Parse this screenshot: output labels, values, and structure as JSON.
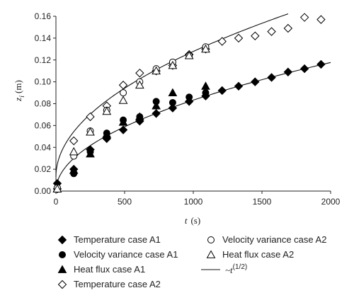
{
  "chart_data": {
    "type": "scatter",
    "xlabel": "t",
    "xunit": "(s)",
    "ylabel": "z",
    "ylabel_sub": "i",
    "yunit": "(m)",
    "xlim": [
      0,
      2000
    ],
    "ylim": [
      0,
      0.16
    ],
    "xticks": [
      0,
      500,
      1000,
      1500,
      2000
    ],
    "xtick_labels": [
      "0",
      "500",
      "1000",
      "1500",
      "2000"
    ],
    "yticks": [
      0,
      0.02,
      0.04,
      0.06,
      0.08,
      0.1,
      0.12,
      0.14,
      0.16
    ],
    "ytick_labels": [
      "0.00",
      "0.02",
      "0.04",
      "0.06",
      "0.08",
      "0.10",
      "0.12",
      "0.14",
      "0.16"
    ],
    "grid": false,
    "legend_position": "bottom",
    "series": [
      {
        "name": "Temperature case A1",
        "marker": "diamond-filled",
        "x": [
          10,
          130,
          250,
          370,
          490,
          610,
          730,
          850,
          970,
          1090,
          1210,
          1330,
          1450,
          1570,
          1690,
          1810,
          1930
        ],
        "y": [
          0.007,
          0.02,
          0.038,
          0.048,
          0.056,
          0.064,
          0.071,
          0.076,
          0.082,
          0.087,
          0.092,
          0.096,
          0.1,
          0.104,
          0.109,
          0.112,
          0.116
        ]
      },
      {
        "name": "Velocity variance case A1",
        "marker": "circle-filled",
        "x": [
          10,
          130,
          250,
          370,
          490,
          610,
          730,
          850,
          970,
          1090
        ],
        "y": [
          0.003,
          0.016,
          0.036,
          0.053,
          0.065,
          0.068,
          0.082,
          0.081,
          0.086,
          0.09
        ]
      },
      {
        "name": "Heat flux case A1",
        "marker": "triangle-filled",
        "x": [
          10,
          130,
          250,
          370,
          490,
          610,
          730,
          850,
          1090
        ],
        "y": [
          0.002,
          0.019,
          0.034,
          0.052,
          0.063,
          0.068,
          0.078,
          0.09,
          0.096
        ]
      },
      {
        "name": "Temperature case A2",
        "marker": "diamond-open",
        "x": [
          10,
          130,
          250,
          370,
          490,
          610,
          730,
          850,
          970,
          1090,
          1210,
          1330,
          1450,
          1570,
          1690,
          1810,
          1930
        ],
        "y": [
          0.002,
          0.046,
          0.068,
          0.078,
          0.097,
          0.108,
          0.11,
          0.115,
          0.125,
          0.13,
          0.137,
          0.14,
          0.142,
          0.146,
          0.149,
          0.159,
          0.157
        ]
      },
      {
        "name": "Velocity variance case A2",
        "marker": "circle-open",
        "x": [
          10,
          130,
          250,
          370,
          490,
          610,
          730,
          850,
          970,
          1090
        ],
        "y": [
          0.003,
          0.032,
          0.055,
          0.074,
          0.09,
          0.1,
          0.112,
          0.118,
          0.124,
          0.132
        ]
      },
      {
        "name": "Heat flux case A2",
        "marker": "triangle-open",
        "x": [
          10,
          130,
          250,
          370,
          490,
          610,
          730,
          850,
          970,
          1090
        ],
        "y": [
          0.002,
          0.036,
          0.054,
          0.073,
          0.083,
          0.097,
          0.11,
          0.115,
          0.124,
          0.13
        ]
      }
    ],
    "fit_lines": [
      {
        "name": "~t",
        "name_sup": "(1/2)",
        "coef": 0.002632,
        "x_end": 2000,
        "y_offset": 0,
        "show_in_legend": true
      },
      {
        "name": "",
        "coef": 0.00363,
        "x_end": 1690,
        "y_offset": 0.013,
        "show_in_legend": false
      }
    ]
  }
}
